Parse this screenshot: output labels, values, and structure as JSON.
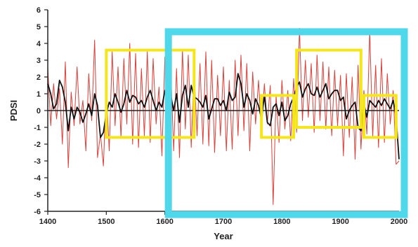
{
  "chart_data": {
    "type": "line",
    "xlabel": "Year",
    "ylabel": "PDSI",
    "xlim": [
      1400,
      2000
    ],
    "ylim": [
      -6,
      6
    ],
    "x_ticks": [
      1400,
      1500,
      1600,
      1700,
      1800,
      1900,
      2000
    ],
    "y_ticks": [
      -6,
      -5,
      -4,
      -3,
      -2,
      -1,
      0,
      1,
      2,
      3,
      4,
      5,
      6
    ],
    "zero_line": 0,
    "grid": false,
    "legend": "none",
    "colors": {
      "annual": "#d9413b",
      "smoothed": "#111111",
      "highlight_box": "#f5e61c",
      "region_frame": "#4fd8ea",
      "axis": "#222222"
    },
    "series": [
      {
        "x": [
          1400,
          1405,
          1410,
          1415,
          1420,
          1425,
          1430,
          1435,
          1440,
          1445,
          1450,
          1455,
          1460,
          1465,
          1470,
          1475,
          1480,
          1485,
          1490,
          1495,
          1500,
          1505,
          1510,
          1515,
          1520,
          1525,
          1530,
          1535,
          1540,
          1545,
          1550,
          1555,
          1560,
          1565,
          1570,
          1575,
          1580,
          1585,
          1590,
          1595,
          1600,
          1605,
          1610,
          1615,
          1620,
          1625,
          1630,
          1635,
          1640,
          1645,
          1650,
          1655,
          1660,
          1665,
          1670,
          1675,
          1680,
          1685,
          1690,
          1695,
          1700,
          1705,
          1710,
          1715,
          1720,
          1725,
          1730,
          1735,
          1740,
          1745,
          1750,
          1755,
          1760,
          1765,
          1770,
          1775,
          1780,
          1785,
          1790,
          1795,
          1800,
          1805,
          1810,
          1815,
          1820,
          1825,
          1830,
          1835,
          1840,
          1845,
          1850,
          1855,
          1860,
          1865,
          1870,
          1875,
          1880,
          1885,
          1890,
          1895,
          1900,
          1905,
          1910,
          1915,
          1920,
          1925,
          1930,
          1935,
          1940,
          1945,
          1950,
          1955,
          1960,
          1965,
          1970,
          1975,
          1980,
          1985,
          1990,
          1995,
          2000
        ],
        "values": [
          2.6,
          -0.9,
          1.6,
          -0.5,
          1.3,
          -2.0,
          2.9,
          -3.4,
          1.1,
          -0.9,
          2.6,
          -0.8,
          0.6,
          -2.4,
          2.2,
          -0.6,
          4.2,
          -2.8,
          -1.4,
          -3.3,
          1.3,
          -2.4,
          3.5,
          -0.9,
          2.6,
          -1.6,
          3.1,
          -0.8,
          4.0,
          -2.0,
          3.4,
          -2.2,
          2.5,
          -1.5,
          3.5,
          -1.9,
          3.1,
          -0.8,
          1.4,
          -2.7,
          3.2,
          -1.1,
          2.6,
          -2.4,
          2.5,
          -2.8,
          3.6,
          -1.1,
          3.3,
          -2.2,
          2.5,
          -1.5,
          2.8,
          -2.0,
          3.5,
          -2.1,
          3.0,
          -2.5,
          2.1,
          -1.5,
          2.6,
          -2.4,
          1.8,
          -2.3,
          3.0,
          -1.5,
          3.3,
          -1.2,
          2.8,
          -2.4,
          2.3,
          -0.8,
          1.8,
          -1.3,
          1.6,
          -0.8,
          1.5,
          -5.6,
          0.9,
          -1.9,
          1.8,
          -1.1,
          1.2,
          -1.8,
          1.9,
          -1.3,
          4.9,
          -0.6,
          3.0,
          -0.4,
          2.8,
          -1.3,
          3.3,
          -0.6,
          2.9,
          -1.1,
          2.6,
          -1.5,
          2.4,
          -0.9,
          2.1,
          -2.7,
          2.2,
          -1.6,
          2.0,
          -2.9,
          2.7,
          -2.3,
          1.2,
          -1.4,
          4.8,
          -1.6,
          2.7,
          -2.2,
          3.1,
          -1.9,
          2.2,
          -0.8,
          1.2,
          -3.2,
          -3.0
        ]
      },
      {
        "x": [
          1400,
          1405,
          1410,
          1415,
          1420,
          1425,
          1430,
          1435,
          1440,
          1445,
          1450,
          1455,
          1460,
          1465,
          1470,
          1475,
          1480,
          1485,
          1490,
          1495,
          1500,
          1505,
          1510,
          1515,
          1520,
          1525,
          1530,
          1535,
          1540,
          1545,
          1550,
          1555,
          1560,
          1565,
          1570,
          1575,
          1580,
          1585,
          1590,
          1595,
          1600,
          1605,
          1610,
          1615,
          1620,
          1625,
          1630,
          1635,
          1640,
          1645,
          1650,
          1655,
          1660,
          1665,
          1670,
          1675,
          1680,
          1685,
          1690,
          1695,
          1700,
          1705,
          1710,
          1715,
          1720,
          1725,
          1730,
          1735,
          1740,
          1745,
          1750,
          1755,
          1760,
          1765,
          1770,
          1775,
          1780,
          1785,
          1790,
          1795,
          1800,
          1805,
          1810,
          1815,
          1820,
          1825,
          1830,
          1835,
          1840,
          1845,
          1850,
          1855,
          1860,
          1865,
          1870,
          1875,
          1880,
          1885,
          1890,
          1895,
          1900,
          1905,
          1910,
          1915,
          1920,
          1925,
          1930,
          1935,
          1940,
          1945,
          1950,
          1955,
          1960,
          1965,
          1970,
          1975,
          1980,
          1985,
          1990,
          1995,
          2000
        ],
        "values": [
          1.6,
          1.0,
          0.1,
          0.4,
          1.8,
          1.4,
          0.5,
          -1.2,
          0.2,
          -0.5,
          0.2,
          -0.1,
          -0.7,
          -0.2,
          0.4,
          -0.3,
          1.0,
          0.3,
          -1.6,
          -1.3,
          -0.2,
          0.5,
          0.2,
          1.0,
          0.5,
          -0.1,
          0.4,
          1.2,
          0.5,
          0.9,
          0.8,
          0.4,
          0.6,
          0.2,
          0.8,
          1.2,
          0.6,
          0.0,
          0.5,
          0.2,
          1.2,
          0.6,
          0.9,
          0.0,
          1.0,
          -0.7,
          0.9,
          1.5,
          0.2,
          1.5,
          0.8,
          0.7,
          0.5,
          0.2,
          0.9,
          -0.5,
          0.1,
          0.7,
          0.7,
          0.3,
          0.6,
          0.0,
          1.1,
          0.6,
          0.8,
          2.2,
          1.6,
          0.2,
          1.0,
          0.6,
          -0.2,
          0.7,
          0.3,
          -0.5,
          0.9,
          -0.7,
          -0.9,
          0.2,
          0.4,
          -0.3,
          0.5,
          -0.6,
          -0.3,
          0.4,
          0.8,
          1.4,
          1.7,
          0.8,
          1.3,
          1.6,
          1.0,
          0.9,
          1.4,
          0.8,
          1.2,
          1.6,
          0.7,
          1.0,
          1.2,
          1.2,
          0.6,
          0.8,
          -0.5,
          0.0,
          0.3,
          0.5,
          -1.0,
          -1.2,
          0.4,
          -0.4,
          0.6,
          0.4,
          0.2,
          0.6,
          0.3,
          0.7,
          0.4,
          0.1,
          0.6,
          -0.4,
          -2.9
        ]
      }
    ],
    "highlight_boxes": [
      {
        "x": [
          1500,
          1650
        ],
        "y": [
          -1.6,
          3.6
        ]
      },
      {
        "x": [
          1765,
          1820
        ],
        "y": [
          -1.6,
          0.9
        ]
      },
      {
        "x": [
          1825,
          1935
        ],
        "y": [
          -1.0,
          3.6
        ]
      },
      {
        "x": [
          1940,
          1995
        ],
        "y": [
          -1.6,
          0.9
        ]
      }
    ],
    "region_frame": {
      "x": [
        1600,
        2015
      ],
      "y": [
        -6.4,
        4.9
      ]
    }
  }
}
